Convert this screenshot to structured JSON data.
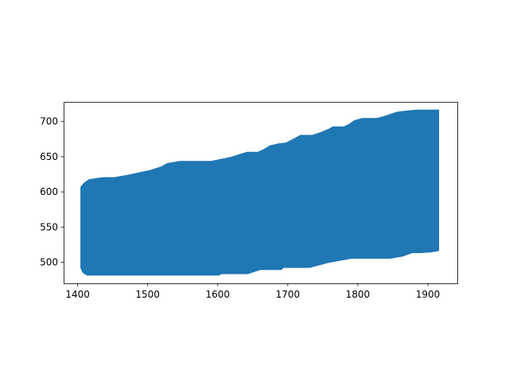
{
  "chart_data": {
    "type": "area",
    "title": "",
    "xlabel": "",
    "ylabel": "",
    "xlim": [
      1380,
      1942
    ],
    "ylim": [
      470,
      728
    ],
    "grid": false,
    "legend": "none",
    "color": "#1f77b4",
    "x_ticks": [
      1400,
      1500,
      1600,
      1700,
      1800,
      1900
    ],
    "y_ticks": [
      500,
      550,
      600,
      650,
      700
    ],
    "upper_boundary": [
      [
        1404,
        607
      ],
      [
        1409,
        613
      ],
      [
        1416,
        618
      ],
      [
        1436,
        621
      ],
      [
        1452,
        621
      ],
      [
        1470,
        624
      ],
      [
        1484,
        627
      ],
      [
        1503,
        631
      ],
      [
        1519,
        636
      ],
      [
        1528,
        641
      ],
      [
        1546,
        644
      ],
      [
        1565,
        644
      ],
      [
        1590,
        644
      ],
      [
        1605,
        647
      ],
      [
        1620,
        650
      ],
      [
        1632,
        654
      ],
      [
        1642,
        657
      ],
      [
        1657,
        657
      ],
      [
        1666,
        661
      ],
      [
        1674,
        666
      ],
      [
        1687,
        669
      ],
      [
        1697,
        670
      ],
      [
        1707,
        675
      ],
      [
        1718,
        681
      ],
      [
        1735,
        681
      ],
      [
        1747,
        685
      ],
      [
        1759,
        690
      ],
      [
        1764,
        693
      ],
      [
        1780,
        693
      ],
      [
        1788,
        697
      ],
      [
        1795,
        702
      ],
      [
        1807,
        705
      ],
      [
        1827,
        705
      ],
      [
        1838,
        708
      ],
      [
        1847,
        711
      ],
      [
        1856,
        714
      ],
      [
        1873,
        716
      ],
      [
        1884,
        717
      ],
      [
        1916,
        717
      ]
    ],
    "lower_boundary": [
      [
        1916,
        516
      ],
      [
        1905,
        514
      ],
      [
        1890,
        513
      ],
      [
        1878,
        513
      ],
      [
        1864,
        508
      ],
      [
        1846,
        505
      ],
      [
        1817,
        505
      ],
      [
        1791,
        505
      ],
      [
        1774,
        502
      ],
      [
        1758,
        499
      ],
      [
        1743,
        495
      ],
      [
        1731,
        492
      ],
      [
        1709,
        492
      ],
      [
        1694,
        492
      ],
      [
        1691,
        489
      ],
      [
        1672,
        489
      ],
      [
        1661,
        489
      ],
      [
        1652,
        486
      ],
      [
        1643,
        483
      ],
      [
        1628,
        483
      ],
      [
        1613,
        483
      ],
      [
        1605,
        483
      ],
      [
        1602,
        481
      ],
      [
        1585,
        481
      ],
      [
        1557,
        481
      ],
      [
        1526,
        481
      ],
      [
        1502,
        481
      ],
      [
        1466,
        481
      ],
      [
        1431,
        481
      ],
      [
        1413,
        481
      ],
      [
        1407,
        485
      ],
      [
        1404,
        492
      ]
    ]
  }
}
